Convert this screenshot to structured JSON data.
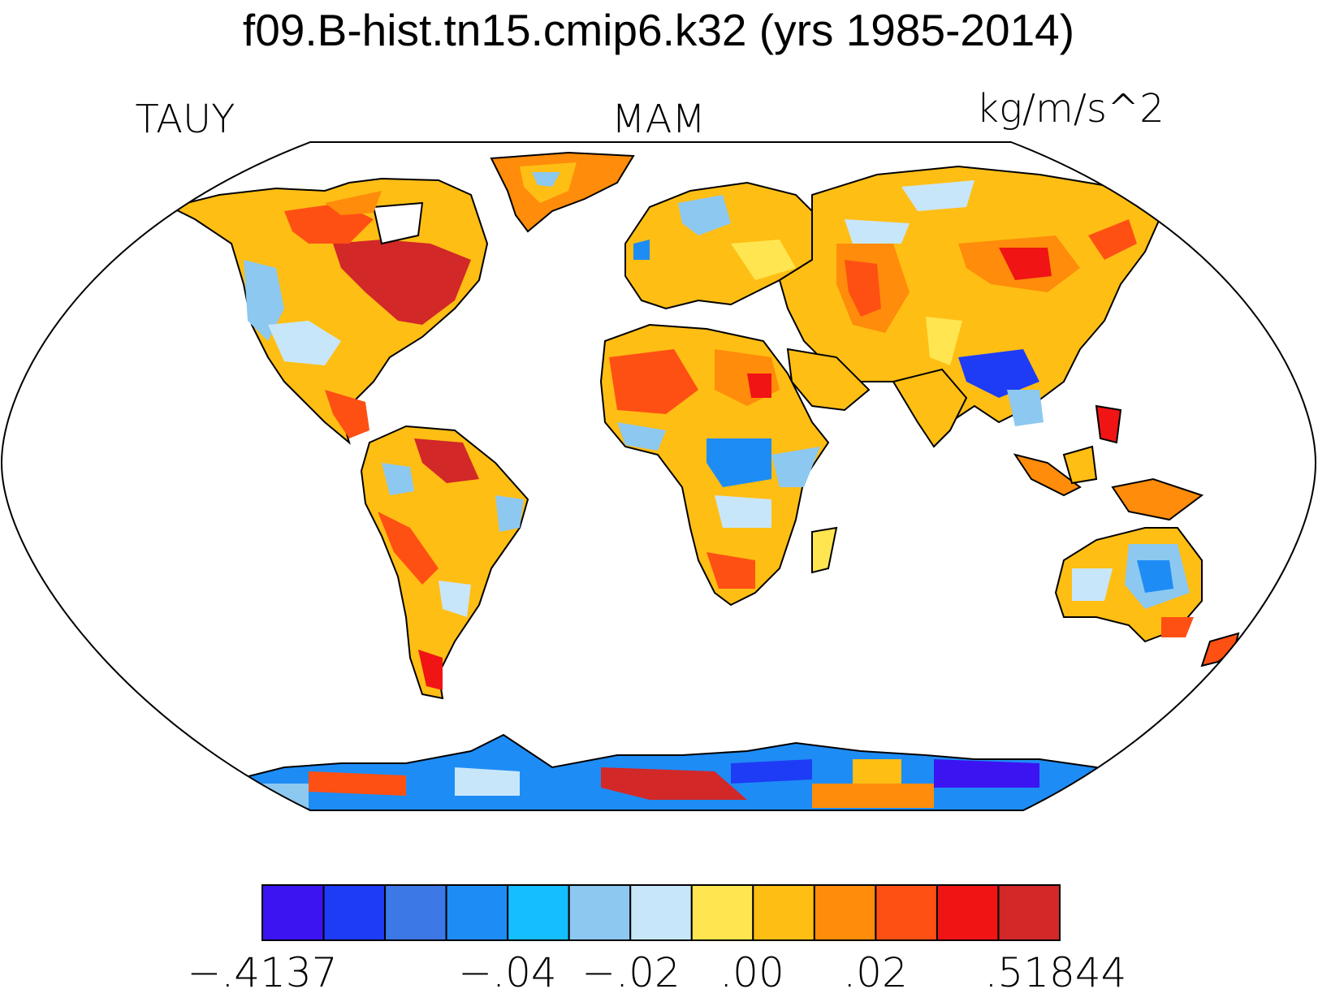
{
  "header": {
    "title": "f09.B-hist.tn15.cmip6.k32 (yrs 1985-2014)",
    "left_label": "TAUY",
    "center_label": "MAM",
    "right_label": "kg/m/s^2"
  },
  "colorbar": {
    "colors": [
      "#3c14f2",
      "#1e3cf5",
      "#3c78e6",
      "#1e8cf5",
      "#14beff",
      "#8cc8f0",
      "#c8e6fa",
      "#ffe650",
      "#ffbe14",
      "#ff8c0a",
      "#ff5014",
      "#f01414",
      "#d22828"
    ],
    "tick_labels": [
      "−.4137",
      "−.04",
      "−.02",
      ".00",
      ".02",
      ".51844"
    ]
  },
  "map": {
    "projection": "Robinson",
    "colors_land_positive": [
      "#ffe650",
      "#ffbe14",
      "#ff8c0a",
      "#ff5014",
      "#d22828"
    ],
    "colors_land_negative": [
      "#c8e6fa",
      "#8cc8f0",
      "#14beff",
      "#1e8cf5",
      "#1e3cf5",
      "#3c14f2"
    ],
    "coastline_color": "#000000"
  }
}
